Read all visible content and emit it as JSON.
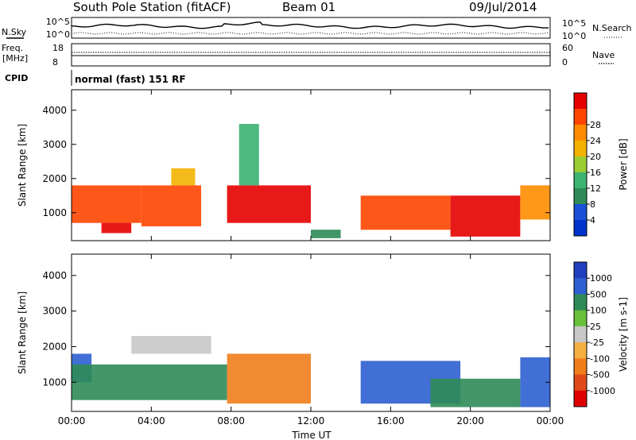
{
  "header": {
    "station": "South Pole Station (fitACF)",
    "beam": "Beam 01",
    "date": "09/Jul/2014",
    "mode": "normal (fast) 151 RF"
  },
  "param_panels": {
    "noise_label_left": "N.Sky",
    "noise_label_right": "N.Search",
    "noise_ticks_left": [
      "10^5",
      "10^0"
    ],
    "noise_ticks_right": [
      "10^5",
      "10^0"
    ],
    "freq_label": "Freq.",
    "freq_unit": "[MHz]",
    "freq_ticks": [
      "18",
      "8"
    ],
    "nave_label": "Nave",
    "nave_ticks": [
      "60",
      "0"
    ],
    "cpid_label": "CPID"
  },
  "colors": {
    "power": [
      "#0033cc",
      "#1a4fd6",
      "#2e8b57",
      "#3cb371",
      "#9acd32",
      "#f2b200",
      "#ff8c00",
      "#ff4500",
      "#e60000"
    ],
    "velocity": [
      "#1f3fbf",
      "#2e5fd0",
      "#2e8b57",
      "#6abf3a",
      "#c8c8c8",
      "#f5b041",
      "#f07d1a",
      "#e04a1a",
      "#dd0000"
    ]
  },
  "chart_data": [
    {
      "type": "heatmap",
      "name": "Power",
      "ylabel": "Slant Range [km]",
      "xlabel": "Time UT",
      "x_ticks": [
        "00:00",
        "04:00",
        "08:00",
        "12:00",
        "16:00",
        "20:00",
        "00:00"
      ],
      "y_ticks": [
        "1000",
        "2000",
        "3000",
        "4000"
      ],
      "xlim": [
        0,
        24
      ],
      "ylim": [
        180,
        4600
      ],
      "colorbar_label": "Power [dB]",
      "colorbar_ticks": [
        "4",
        "8",
        "12",
        "16",
        "20",
        "24",
        "28"
      ],
      "regions": [
        {
          "t": [
            0.0,
            3.5
          ],
          "r": [
            700,
            1800
          ],
          "level": 7
        },
        {
          "t": [
            1.5,
            3.0
          ],
          "r": [
            400,
            700
          ],
          "level": 8
        },
        {
          "t": [
            3.5,
            6.5
          ],
          "r": [
            600,
            1800
          ],
          "level": 7
        },
        {
          "t": [
            5.0,
            6.2
          ],
          "r": [
            1800,
            2300
          ],
          "level": 5
        },
        {
          "t": [
            7.8,
            12.0
          ],
          "r": [
            700,
            1800
          ],
          "level": 8
        },
        {
          "t": [
            8.4,
            9.4
          ],
          "r": [
            1800,
            3600
          ],
          "level": 3
        },
        {
          "t": [
            12.0,
            13.5
          ],
          "r": [
            250,
            500
          ],
          "level": 2
        },
        {
          "t": [
            14.5,
            19.0
          ],
          "r": [
            500,
            1500
          ],
          "level": 7
        },
        {
          "t": [
            19.0,
            22.5
          ],
          "r": [
            300,
            1500
          ],
          "level": 8
        },
        {
          "t": [
            22.5,
            24.0
          ],
          "r": [
            800,
            1800
          ],
          "level": 6
        }
      ]
    },
    {
      "type": "heatmap",
      "name": "Velocity",
      "ylabel": "Slant Range [km]",
      "xlabel": "Time UT",
      "x_ticks": [
        "00:00",
        "04:00",
        "08:00",
        "12:00",
        "16:00",
        "20:00",
        "00:00"
      ],
      "y_ticks": [
        "1000",
        "2000",
        "3000",
        "4000"
      ],
      "xlim": [
        0,
        24
      ],
      "ylim": [
        180,
        4600
      ],
      "colorbar_label": "Velocity [m s-1]",
      "colorbar_ticks": [
        "1000",
        "500",
        "100",
        "25",
        "-25",
        "-100",
        "-500",
        "-1000"
      ],
      "regions": [
        {
          "t": [
            0.0,
            1.0
          ],
          "r": [
            1000,
            1800
          ],
          "level": 1
        },
        {
          "t": [
            0.0,
            7.8
          ],
          "r": [
            500,
            1500
          ],
          "level": 2
        },
        {
          "t": [
            3.0,
            7.0
          ],
          "r": [
            1800,
            2300
          ],
          "level": 4
        },
        {
          "t": [
            7.8,
            12.0
          ],
          "r": [
            400,
            1800
          ],
          "level": 6
        },
        {
          "t": [
            14.5,
            19.5
          ],
          "r": [
            400,
            1600
          ],
          "level": 1
        },
        {
          "t": [
            18.0,
            22.5
          ],
          "r": [
            300,
            1100
          ],
          "level": 2
        },
        {
          "t": [
            22.5,
            24.0
          ],
          "r": [
            300,
            1700
          ],
          "level": 1
        }
      ]
    }
  ]
}
